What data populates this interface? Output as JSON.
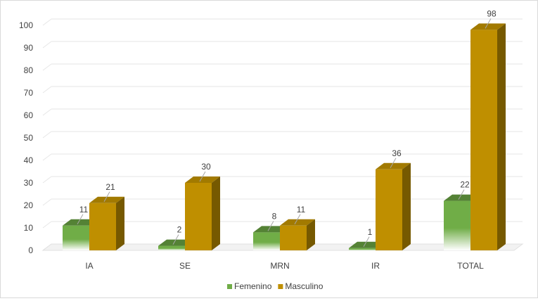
{
  "chart_data": {
    "type": "bar",
    "categories": [
      "IA",
      "SE",
      "MRN",
      "IR",
      "TOTAL"
    ],
    "series": [
      {
        "name": "Femenino",
        "values": [
          11,
          2,
          8,
          1,
          22
        ],
        "color": "#70ad47"
      },
      {
        "name": "Masculino",
        "values": [
          21,
          30,
          11,
          36,
          98
        ],
        "color": "#bf8f00"
      }
    ],
    "ylim": [
      0,
      100
    ],
    "yticks": [
      0,
      10,
      20,
      30,
      40,
      50,
      60,
      70,
      80,
      90,
      100
    ],
    "grid": true,
    "legend_position": "bottom",
    "style": "3d-clustered-column"
  }
}
